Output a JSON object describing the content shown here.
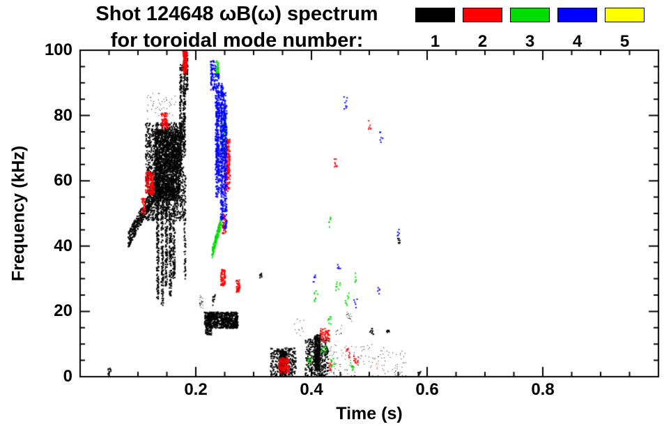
{
  "header": {
    "title_line1": "Shot 124648 ωB(ω) spectrum",
    "title_line2": "for toroidal mode number:"
  },
  "chart_data": {
    "type": "scatter",
    "title": "Shot 124648 ωB(ω) spectrum for toroidal mode number: 1-5",
    "xlabel": "Time (s)",
    "ylabel": "Frequency (kHz)",
    "x_range": [
      0.0,
      1.0
    ],
    "y_range": [
      0,
      100
    ],
    "grid": false,
    "legend_position": "top-right",
    "x_ticks": {
      "values": [
        0.2,
        0.4,
        0.6,
        0.8
      ],
      "labels": [
        "0.2",
        "0.4",
        "0.6",
        "0.8"
      ],
      "minor_step": 0.05
    },
    "y_ticks": {
      "values": [
        0,
        20,
        40,
        60,
        80,
        100
      ],
      "labels": [
        "0",
        "20",
        "40",
        "60",
        "80",
        "100"
      ],
      "minor_step": 5
    },
    "series": [
      {
        "mode": 1,
        "label": "1",
        "color": "#000000"
      },
      {
        "mode": 2,
        "label": "2",
        "color": "#ff0000"
      },
      {
        "mode": 3,
        "label": "3",
        "color": "#00dd00"
      },
      {
        "mode": 4,
        "label": "4",
        "color": "#0000ff"
      },
      {
        "mode": 5,
        "label": "5",
        "color": "#ffff00"
      }
    ],
    "clusters": [
      {
        "m": 1,
        "shape": "diag",
        "t": [
          0.082,
          0.128
        ],
        "f": [
          42,
          57
        ],
        "th": 5,
        "n": 350,
        "s": 2
      },
      {
        "m": 1,
        "shape": "blob",
        "t": [
          0.112,
          0.178
        ],
        "f": [
          48,
          78
        ],
        "n": 1400,
        "s": 2
      },
      {
        "m": 1,
        "shape": "blob",
        "t": [
          0.128,
          0.172
        ],
        "f": [
          54,
          76
        ],
        "n": 1600,
        "s": 2
      },
      {
        "m": 1,
        "shape": "blob",
        "t": [
          0.131,
          0.135
        ],
        "f": [
          24,
          54
        ],
        "n": 150,
        "s": 2
      },
      {
        "m": 1,
        "shape": "blob",
        "t": [
          0.139,
          0.143
        ],
        "f": [
          22,
          58
        ],
        "n": 160,
        "s": 2
      },
      {
        "m": 1,
        "shape": "blob",
        "t": [
          0.146,
          0.15
        ],
        "f": [
          28,
          60
        ],
        "n": 150,
        "s": 2
      },
      {
        "m": 1,
        "shape": "blob",
        "t": [
          0.153,
          0.157
        ],
        "f": [
          25,
          50
        ],
        "n": 130,
        "s": 2
      },
      {
        "m": 1,
        "shape": "blob",
        "t": [
          0.159,
          0.163
        ],
        "f": [
          30,
          52
        ],
        "n": 100,
        "s": 2
      },
      {
        "m": 1,
        "shape": "blob",
        "t": [
          0.171,
          0.175
        ],
        "f": [
          62,
          96
        ],
        "n": 150,
        "s": 2
      },
      {
        "m": 1,
        "shape": "blob",
        "t": [
          0.177,
          0.181
        ],
        "f": [
          68,
          100
        ],
        "n": 160,
        "s": 2
      },
      {
        "m": 1,
        "shape": "blob",
        "t": [
          0.182,
          0.185
        ],
        "f": [
          88,
          100
        ],
        "n": 60,
        "s": 2
      },
      {
        "m": 1,
        "shape": "blob",
        "t": [
          0.1785,
          0.1815
        ],
        "f": [
          30,
          62
        ],
        "n": 80,
        "s": 2
      },
      {
        "m": 1,
        "shape": "blob",
        "t": [
          0.115,
          0.168
        ],
        "f": [
          79,
          87
        ],
        "n": 50,
        "s": 1
      },
      {
        "m": 1,
        "shape": "blob",
        "t": [
          0.214,
          0.272
        ],
        "f": [
          15,
          20
        ],
        "n": 700,
        "s": 2
      },
      {
        "m": 1,
        "shape": "blob",
        "t": [
          0.216,
          0.226
        ],
        "f": [
          13,
          16
        ],
        "n": 60,
        "s": 2
      },
      {
        "m": 1,
        "shape": "blob",
        "t": [
          0.206,
          0.212
        ],
        "f": [
          21,
          25
        ],
        "n": 25,
        "s": 1
      },
      {
        "m": 1,
        "shape": "blob",
        "t": [
          0.328,
          0.372
        ],
        "f": [
          0,
          9
        ],
        "n": 280,
        "s": 2
      },
      {
        "m": 1,
        "shape": "blob",
        "t": [
          0.344,
          0.356
        ],
        "f": [
          1,
          8
        ],
        "n": 220,
        "s": 2
      },
      {
        "m": 1,
        "shape": "blob",
        "t": [
          0.388,
          0.428
        ],
        "f": [
          0,
          12
        ],
        "n": 320,
        "s": 2
      },
      {
        "m": 1,
        "shape": "blob",
        "t": [
          0.404,
          0.414
        ],
        "f": [
          2,
          13
        ],
        "n": 300,
        "s": 2
      },
      {
        "m": 1,
        "shape": "blob",
        "t": [
          0.428,
          0.505
        ],
        "f": [
          0,
          10
        ],
        "n": 90,
        "s": 1
      },
      {
        "m": 1,
        "shape": "blob",
        "t": [
          0.505,
          0.565
        ],
        "f": [
          0,
          9
        ],
        "n": 55,
        "s": 1
      },
      {
        "m": 1,
        "shape": "blob",
        "t": [
          0.5,
          0.506
        ],
        "f": [
          13,
          15
        ],
        "n": 10,
        "s": 2
      },
      {
        "m": 1,
        "shape": "blob",
        "t": [
          0.528,
          0.534
        ],
        "f": [
          13,
          15
        ],
        "n": 8,
        "s": 2
      },
      {
        "m": 1,
        "shape": "blob",
        "t": [
          0.046,
          0.052
        ],
        "f": [
          1,
          3
        ],
        "n": 10,
        "s": 2
      },
      {
        "m": 1,
        "shape": "blob",
        "t": [
          0.308,
          0.313
        ],
        "f": [
          30,
          32
        ],
        "n": 8,
        "s": 2
      },
      {
        "m": 1,
        "shape": "blob",
        "t": [
          0.548,
          0.553
        ],
        "f": [
          41,
          43
        ],
        "n": 8,
        "s": 2
      },
      {
        "m": 1,
        "shape": "blob",
        "t": [
          0.583,
          0.588
        ],
        "f": [
          0,
          2
        ],
        "n": 8,
        "s": 2
      },
      {
        "m": 1,
        "shape": "blob",
        "t": [
          0.228,
          0.233
        ],
        "f": [
          22,
          26
        ],
        "n": 12,
        "s": 2
      },
      {
        "m": 1,
        "shape": "blob",
        "t": [
          0.457,
          0.47
        ],
        "f": [
          17,
          20
        ],
        "n": 18,
        "s": 1
      },
      {
        "m": 1,
        "shape": "blob",
        "t": [
          0.44,
          0.452
        ],
        "f": [
          13,
          16
        ],
        "n": 12,
        "s": 1
      },
      {
        "m": 1,
        "shape": "blob",
        "t": [
          0.37,
          0.39
        ],
        "f": [
          12,
          18
        ],
        "n": 12,
        "s": 1
      },
      {
        "m": 2,
        "shape": "blob",
        "t": [
          0.1765,
          0.1835
        ],
        "f": [
          93,
          100
        ],
        "n": 130,
        "s": 2
      },
      {
        "m": 2,
        "shape": "blob",
        "t": [
          0.112,
          0.127
        ],
        "f": [
          56,
          63
        ],
        "n": 130,
        "s": 2
      },
      {
        "m": 2,
        "shape": "blob",
        "t": [
          0.139,
          0.151
        ],
        "f": [
          76,
          81
        ],
        "n": 70,
        "s": 2
      },
      {
        "m": 2,
        "shape": "blob",
        "t": [
          0.105,
          0.112
        ],
        "f": [
          50,
          55
        ],
        "n": 30,
        "s": 2
      },
      {
        "m": 2,
        "shape": "blob",
        "t": [
          0.249,
          0.258
        ],
        "f": [
          57,
          73
        ],
        "n": 180,
        "s": 2
      },
      {
        "m": 2,
        "shape": "blob",
        "t": [
          0.244,
          0.251
        ],
        "f": [
          44,
          50
        ],
        "n": 40,
        "s": 2
      },
      {
        "m": 2,
        "shape": "blob",
        "t": [
          0.242,
          0.25
        ],
        "f": [
          28,
          33
        ],
        "n": 70,
        "s": 2
      },
      {
        "m": 2,
        "shape": "blob",
        "t": [
          0.268,
          0.2745
        ],
        "f": [
          26,
          30
        ],
        "n": 40,
        "s": 2
      },
      {
        "m": 2,
        "shape": "blob",
        "t": [
          0.342,
          0.36
        ],
        "f": [
          1,
          6
        ],
        "n": 130,
        "s": 2
      },
      {
        "m": 2,
        "shape": "blob",
        "t": [
          0.414,
          0.43
        ],
        "f": [
          11,
          15
        ],
        "n": 55,
        "s": 2
      },
      {
        "m": 2,
        "shape": "blob",
        "t": [
          0.438,
          0.444
        ],
        "f": [
          64,
          67
        ],
        "n": 8,
        "s": 2
      },
      {
        "m": 2,
        "shape": "blob",
        "t": [
          0.497,
          0.503
        ],
        "f": [
          76,
          79
        ],
        "n": 6,
        "s": 2
      },
      {
        "m": 2,
        "shape": "blob",
        "t": [
          0.472,
          0.48
        ],
        "f": [
          4,
          7
        ],
        "n": 12,
        "s": 2
      },
      {
        "m": 2,
        "shape": "blob",
        "t": [
          0.428,
          0.436
        ],
        "f": [
          2,
          5
        ],
        "n": 12,
        "s": 2
      },
      {
        "m": 2,
        "shape": "blob",
        "t": [
          0.458,
          0.465
        ],
        "f": [
          6,
          9
        ],
        "n": 8,
        "s": 2
      },
      {
        "m": 2,
        "shape": "blob",
        "t": [
          0.51,
          0.517
        ],
        "f": [
          2,
          5
        ],
        "n": 6,
        "s": 1
      },
      {
        "m": 3,
        "shape": "diag",
        "t": [
          0.227,
          0.243
        ],
        "f": [
          38,
          48
        ],
        "th": 3,
        "n": 160,
        "s": 2
      },
      {
        "m": 3,
        "shape": "blob",
        "t": [
          0.244,
          0.252
        ],
        "f": [
          68,
          80
        ],
        "n": 90,
        "s": 2
      },
      {
        "m": 3,
        "shape": "blob",
        "t": [
          0.233,
          0.239
        ],
        "f": [
          92,
          97
        ],
        "n": 40,
        "s": 2
      },
      {
        "m": 3,
        "shape": "blob",
        "t": [
          0.402,
          0.41
        ],
        "f": [
          23,
          27
        ],
        "n": 8,
        "s": 2
      },
      {
        "m": 3,
        "shape": "blob",
        "t": [
          0.427,
          0.434
        ],
        "f": [
          16,
          19
        ],
        "n": 8,
        "s": 2
      },
      {
        "m": 3,
        "shape": "blob",
        "t": [
          0.441,
          0.449
        ],
        "f": [
          26,
          30
        ],
        "n": 8,
        "s": 2
      },
      {
        "m": 3,
        "shape": "blob",
        "t": [
          0.457,
          0.464
        ],
        "f": [
          22,
          26
        ],
        "n": 8,
        "s": 2
      },
      {
        "m": 3,
        "shape": "blob",
        "t": [
          0.415,
          0.425
        ],
        "f": [
          6,
          10
        ],
        "n": 10,
        "s": 2
      },
      {
        "m": 3,
        "shape": "blob",
        "t": [
          0.432,
          0.44
        ],
        "f": [
          3,
          6
        ],
        "n": 10,
        "s": 2
      },
      {
        "m": 3,
        "shape": "blob",
        "t": [
          0.466,
          0.473
        ],
        "f": [
          2,
          5
        ],
        "n": 8,
        "s": 2
      },
      {
        "m": 3,
        "shape": "blob",
        "t": [
          0.428,
          0.433
        ],
        "f": [
          46,
          49
        ],
        "n": 6,
        "s": 2
      },
      {
        "m": 3,
        "shape": "blob",
        "t": [
          0.472,
          0.478
        ],
        "f": [
          29,
          32
        ],
        "n": 5,
        "s": 2
      },
      {
        "m": 3,
        "shape": "blob",
        "t": [
          0.39,
          0.4
        ],
        "f": [
          3,
          7
        ],
        "n": 10,
        "s": 2
      },
      {
        "m": 4,
        "shape": "blob",
        "t": [
          0.2335,
          0.2395
        ],
        "f": [
          55,
          93
        ],
        "n": 260,
        "s": 2
      },
      {
        "m": 4,
        "shape": "blob",
        "t": [
          0.2415,
          0.2465
        ],
        "f": [
          48,
          90
        ],
        "n": 260,
        "s": 2
      },
      {
        "m": 4,
        "shape": "blob",
        "t": [
          0.2475,
          0.2525
        ],
        "f": [
          45,
          85
        ],
        "n": 200,
        "s": 2
      },
      {
        "m": 4,
        "shape": "blob",
        "t": [
          0.2325,
          0.2525
        ],
        "f": [
          60,
          88
        ],
        "n": 300,
        "s": 2
      },
      {
        "m": 4,
        "shape": "blob",
        "t": [
          0.2245,
          0.2335
        ],
        "f": [
          88,
          97
        ],
        "n": 90,
        "s": 2
      },
      {
        "m": 4,
        "shape": "blob",
        "t": [
          0.455,
          0.461
        ],
        "f": [
          82,
          86
        ],
        "n": 8,
        "s": 2
      },
      {
        "m": 4,
        "shape": "blob",
        "t": [
          0.517,
          0.523
        ],
        "f": [
          72,
          76
        ],
        "n": 6,
        "s": 2
      },
      {
        "m": 4,
        "shape": "blob",
        "t": [
          0.402,
          0.408
        ],
        "f": [
          29,
          32
        ],
        "n": 6,
        "s": 2
      },
      {
        "m": 4,
        "shape": "blob",
        "t": [
          0.547,
          0.553
        ],
        "f": [
          43,
          46
        ],
        "n": 5,
        "s": 2
      },
      {
        "m": 4,
        "shape": "blob",
        "t": [
          0.472,
          0.478
        ],
        "f": [
          21,
          24
        ],
        "n": 5,
        "s": 2
      },
      {
        "m": 4,
        "shape": "blob",
        "t": [
          0.443,
          0.449
        ],
        "f": [
          33,
          36
        ],
        "n": 5,
        "s": 2
      },
      {
        "m": 4,
        "shape": "blob",
        "t": [
          0.512,
          0.518
        ],
        "f": [
          25,
          28
        ],
        "n": 5,
        "s": 2
      }
    ]
  }
}
